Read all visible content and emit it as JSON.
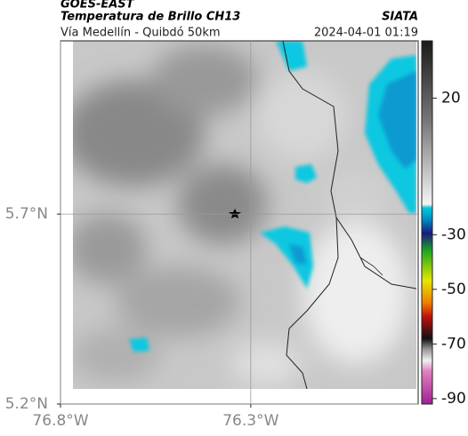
{
  "header": {
    "mission": "GOES-EAST",
    "product": "Temperatura de Brillo CH13",
    "source": "SIATA",
    "region": "Vía Medellín - Quibdó 50km",
    "datetime": "2024-04-01 01:19"
  },
  "map": {
    "lonlim": [
      -76.8,
      -75.86
    ],
    "latlim": [
      5.2,
      6.156
    ],
    "lonticks": [
      {
        "value": -76.8,
        "label": "76.8°W"
      },
      {
        "value": -76.3,
        "label": "76.3°W"
      }
    ],
    "latticks": [
      {
        "value": 5.2,
        "label": "5.2°N"
      },
      {
        "value": 5.7,
        "label": "5.7°N"
      }
    ],
    "grid": true
  },
  "colorbar": {
    "clim": [
      -92,
      41
    ],
    "ticks": [
      20,
      -30,
      -50,
      -70,
      -90
    ]
  }
}
